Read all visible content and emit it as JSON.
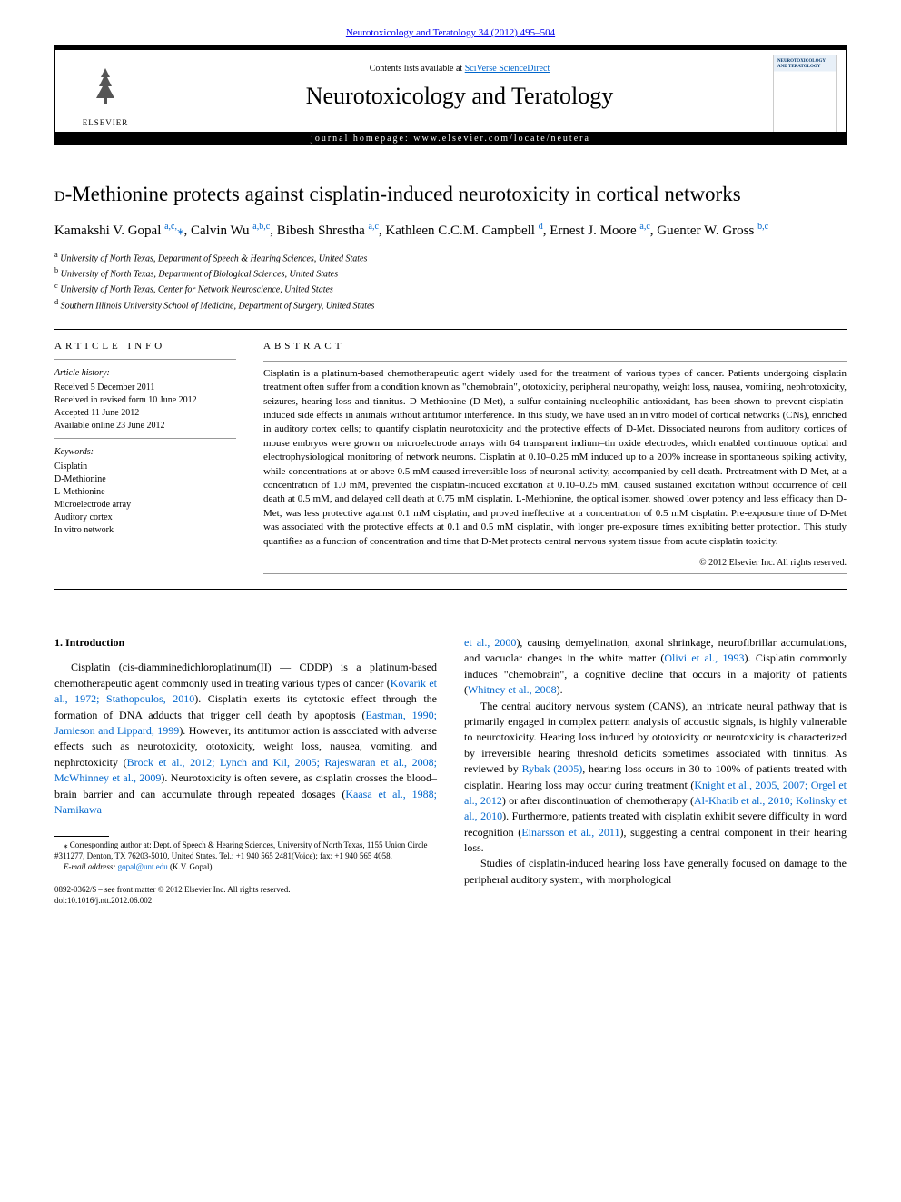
{
  "header": {
    "top_link": "Neurotoxicology and Teratology 34 (2012) 495–504",
    "contents_prefix": "Contents lists available at ",
    "contents_link": "SciVerse ScienceDirect",
    "journal_title": "Neurotoxicology and Teratology",
    "homepage_prefix": "journal homepage: ",
    "homepage_url": "www.elsevier.com/locate/neutera",
    "elsevier": "ELSEVIER",
    "cover_title": "NEUROTOXICOLOGY\nAND\nTERATOLOGY"
  },
  "article": {
    "title_prefix": "d",
    "title_rest": "-Methionine protects against cisplatin-induced neurotoxicity in cortical networks",
    "authors_html": "Kamakshi V. Gopal <sup>a,c,</sup><span class='star'>⁎</span>, Calvin Wu <sup>a,b,c</sup>, Bibesh Shrestha <sup>a,c</sup>, Kathleen C.C.M. Campbell <sup>d</sup>, Ernest J. Moore <sup>a,c</sup>, Guenter W. Gross <sup>b,c</sup>",
    "affiliations": [
      {
        "sup": "a",
        "text": "University of North Texas, Department of Speech & Hearing Sciences, United States"
      },
      {
        "sup": "b",
        "text": "University of North Texas, Department of Biological Sciences, United States"
      },
      {
        "sup": "c",
        "text": "University of North Texas, Center for Network Neuroscience, United States"
      },
      {
        "sup": "d",
        "text": "Southern Illinois University School of Medicine, Department of Surgery, United States"
      }
    ]
  },
  "meta": {
    "info_heading": "article info",
    "history_label": "Article history:",
    "history": [
      "Received 5 December 2011",
      "Received in revised form 10 June 2012",
      "Accepted 11 June 2012",
      "Available online 23 June 2012"
    ],
    "keywords_label": "Keywords:",
    "keywords": [
      "Cisplatin",
      "D-Methionine",
      "L-Methionine",
      "Microelectrode array",
      "Auditory cortex",
      "In vitro network"
    ]
  },
  "abstract": {
    "heading": "abstract",
    "text": "Cisplatin is a platinum-based chemotherapeutic agent widely used for the treatment of various types of cancer. Patients undergoing cisplatin treatment often suffer from a condition known as \"chemobrain\", ototoxicity, peripheral neuropathy, weight loss, nausea, vomiting, nephrotoxicity, seizures, hearing loss and tinnitus. D-Methionine (D-Met), a sulfur-containing nucleophilic antioxidant, has been shown to prevent cisplatin-induced side effects in animals without antitumor interference. In this study, we have used an in vitro model of cortical networks (CNs), enriched in auditory cortex cells; to quantify cisplatin neurotoxicity and the protective effects of D-Met. Dissociated neurons from auditory cortices of mouse embryos were grown on microelectrode arrays with 64 transparent indium–tin oxide electrodes, which enabled continuous optical and electrophysiological monitoring of network neurons. Cisplatin at 0.10–0.25 mM induced up to a 200% increase in spontaneous spiking activity, while concentrations at or above 0.5 mM caused irreversible loss of neuronal activity, accompanied by cell death. Pretreatment with D-Met, at a concentration of 1.0 mM, prevented the cisplatin-induced excitation at 0.10–0.25 mM, caused sustained excitation without occurrence of cell death at 0.5 mM, and delayed cell death at 0.75 mM cisplatin. L-Methionine, the optical isomer, showed lower potency and less efficacy than D-Met, was less protective against 0.1 mM cisplatin, and proved ineffective at a concentration of 0.5 mM cisplatin. Pre-exposure time of D-Met was associated with the protective effects at 0.1 and 0.5 mM cisplatin, with longer pre-exposure times exhibiting better protection. This study quantifies as a function of concentration and time that D-Met protects central nervous system tissue from acute cisplatin toxicity.",
    "copyright": "© 2012 Elsevier Inc. All rights reserved."
  },
  "body": {
    "intro_heading": "1. Introduction",
    "left_p1": "Cisplatin (cis-diamminedichloroplatinum(II) — CDDP) is a platinum-based chemotherapeutic agent commonly used in treating various types of cancer (<a href='#'>Kovarík et al., 1972; Stathopoulos, 2010</a>). Cisplatin exerts its cytotoxic effect through the formation of DNA adducts that trigger cell death by apoptosis (<a href='#'>Eastman, 1990; Jamieson and Lippard, 1999</a>). However, its antitumor action is associated with adverse effects such as neurotoxicity, ototoxicity, weight loss, nausea, vomiting, and nephrotoxicity (<a href='#'>Brock et al., 2012; Lynch and Kil, 2005; Rajeswaran et al., 2008; McWhinney et al., 2009</a>). Neurotoxicity is often severe, as cisplatin crosses the blood–brain barrier and can accumulate through repeated dosages (<a href='#'>Kaasa et al., 1988; Namikawa</a>",
    "right_p1": "<a href='#'>et al., 2000</a>), causing demyelination, axonal shrinkage, neurofibrillar accumulations, and vacuolar changes in the white matter (<a href='#'>Olivi et al., 1993</a>). Cisplatin commonly induces \"chemobrain\", a cognitive decline that occurs in a majority of patients (<a href='#'>Whitney et al., 2008</a>).",
    "right_p2": "The central auditory nervous system (CANS), an intricate neural pathway that is primarily engaged in complex pattern analysis of acoustic signals, is highly vulnerable to neurotoxicity. Hearing loss induced by ototoxicity or neurotoxicity is characterized by irreversible hearing threshold deficits sometimes associated with tinnitus. As reviewed by <a href='#'>Rybak (2005)</a>, hearing loss occurs in 30 to 100% of patients treated with cisplatin. Hearing loss may occur during treatment (<a href='#'>Knight et al., 2005, 2007; Orgel et al., 2012</a>) or after discontinuation of chemotherapy (<a href='#'>Al-Khatib et al., 2010; Kolinsky et al., 2010</a>). Furthermore, patients treated with cisplatin exhibit severe difficulty in word recognition (<a href='#'>Einarsson et al., 2011</a>), suggesting a central component in their hearing loss.",
    "right_p3": "Studies of cisplatin-induced hearing loss have generally focused on damage to the peripheral auditory system, with morphological"
  },
  "footnotes": {
    "corr": "⁎ Corresponding author at: Dept. of Speech & Hearing Sciences, University of North Texas, 1155 Union Circle #311277, Denton, TX 76203-5010, United States. Tel.: +1 940 565 2481(Voice); fax: +1 940 565 4058.",
    "email_label": "E-mail address: ",
    "email": "gopal@unt.edu",
    "email_suffix": " (K.V. Gopal).",
    "issn": "0892-0362/$ – see front matter © 2012 Elsevier Inc. All rights reserved.",
    "doi": "doi:10.1016/j.ntt.2012.06.002"
  }
}
